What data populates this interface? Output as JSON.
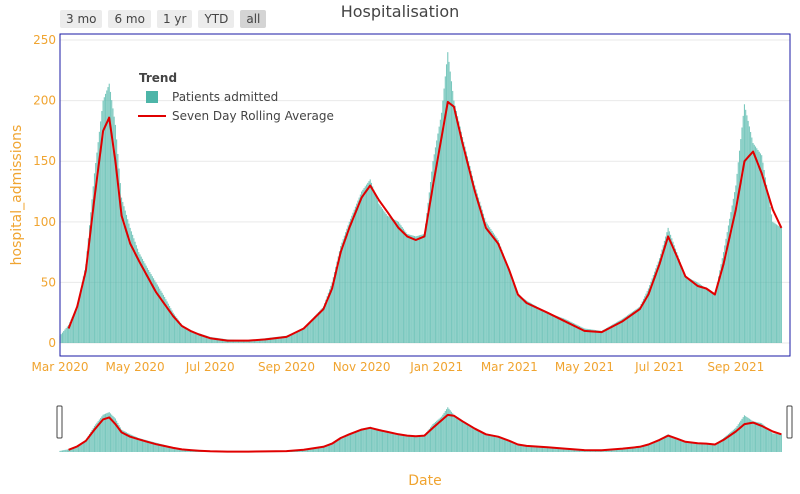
{
  "range_buttons": [
    "3 mo",
    "6 mo",
    "1 yr",
    "YTD",
    "all"
  ],
  "active_range": "all",
  "colors": {
    "bars": "#4db5a8",
    "line": "#e00000",
    "tick_text": "#f0a430",
    "plot_border": "#1a1aa6"
  },
  "chart_data": {
    "type": "bar",
    "title": "Hospitalisation",
    "xlabel": "Date",
    "ylabel": "hospital_admissions",
    "ylim": [
      0,
      255
    ],
    "xlim": [
      "2020-03-01",
      "2021-10-15"
    ],
    "x_ticks": [
      "Mar 2020",
      "May 2020",
      "Jul 2020",
      "Sep 2020",
      "Nov 2020",
      "Jan 2021",
      "Mar 2021",
      "May 2021",
      "Jul 2021",
      "Sep 2021"
    ],
    "x_tick_dates": [
      "2020-03-01",
      "2020-05-01",
      "2020-07-01",
      "2020-09-01",
      "2020-11-01",
      "2021-01-01",
      "2021-03-01",
      "2021-05-01",
      "2021-07-01",
      "2021-09-01"
    ],
    "y_ticks": [
      0,
      50,
      100,
      150,
      200,
      250
    ],
    "legend": {
      "title": "Trend",
      "position": "top-left",
      "entries": [
        "Patients admitted",
        "Seven Day Rolling Average"
      ]
    },
    "range_slider": true,
    "series": [
      {
        "name": "Patients admitted",
        "kind": "bar",
        "points": [
          [
            "2020-03-01",
            6
          ],
          [
            "2020-03-08",
            15
          ],
          [
            "2020-03-15",
            30
          ],
          [
            "2020-03-22",
            65
          ],
          [
            "2020-03-29",
            140
          ],
          [
            "2020-04-05",
            200
          ],
          [
            "2020-04-10",
            214
          ],
          [
            "2020-04-15",
            180
          ],
          [
            "2020-04-20",
            120
          ],
          [
            "2020-04-27",
            95
          ],
          [
            "2020-05-04",
            75
          ],
          [
            "2020-05-11",
            62
          ],
          [
            "2020-05-18",
            50
          ],
          [
            "2020-05-25",
            38
          ],
          [
            "2020-06-01",
            25
          ],
          [
            "2020-06-08",
            15
          ],
          [
            "2020-06-15",
            10
          ],
          [
            "2020-06-22",
            8
          ],
          [
            "2020-07-01",
            5
          ],
          [
            "2020-07-15",
            3
          ],
          [
            "2020-08-01",
            2
          ],
          [
            "2020-08-15",
            4
          ],
          [
            "2020-09-01",
            6
          ],
          [
            "2020-09-15",
            12
          ],
          [
            "2020-10-01",
            30
          ],
          [
            "2020-10-08",
            50
          ],
          [
            "2020-10-15",
            80
          ],
          [
            "2020-10-22",
            100
          ],
          [
            "2020-11-01",
            125
          ],
          [
            "2020-11-08",
            135
          ],
          [
            "2020-11-15",
            115
          ],
          [
            "2020-11-22",
            105
          ],
          [
            "2020-12-01",
            100
          ],
          [
            "2020-12-08",
            90
          ],
          [
            "2020-12-15",
            88
          ],
          [
            "2020-12-22",
            90
          ],
          [
            "2020-12-29",
            150
          ],
          [
            "2021-01-05",
            190
          ],
          [
            "2021-01-10",
            240
          ],
          [
            "2021-01-15",
            200
          ],
          [
            "2021-01-22",
            170
          ],
          [
            "2021-02-01",
            130
          ],
          [
            "2021-02-10",
            100
          ],
          [
            "2021-02-20",
            85
          ],
          [
            "2021-03-01",
            60
          ],
          [
            "2021-03-08",
            40
          ],
          [
            "2021-03-15",
            35
          ],
          [
            "2021-04-01",
            25
          ],
          [
            "2021-04-15",
            20
          ],
          [
            "2021-05-01",
            12
          ],
          [
            "2021-05-15",
            10
          ],
          [
            "2021-06-01",
            20
          ],
          [
            "2021-06-15",
            30
          ],
          [
            "2021-06-22",
            45
          ],
          [
            "2021-07-01",
            70
          ],
          [
            "2021-07-08",
            95
          ],
          [
            "2021-07-15",
            75
          ],
          [
            "2021-07-22",
            55
          ],
          [
            "2021-08-01",
            50
          ],
          [
            "2021-08-08",
            45
          ],
          [
            "2021-08-15",
            40
          ],
          [
            "2021-08-22",
            75
          ],
          [
            "2021-09-01",
            130
          ],
          [
            "2021-09-08",
            197
          ],
          [
            "2021-09-15",
            165
          ],
          [
            "2021-09-22",
            155
          ],
          [
            "2021-10-01",
            100
          ],
          [
            "2021-10-08",
            95
          ]
        ]
      },
      {
        "name": "Seven Day Rolling Average",
        "kind": "line",
        "points": [
          [
            "2020-03-08",
            12
          ],
          [
            "2020-03-15",
            30
          ],
          [
            "2020-03-22",
            60
          ],
          [
            "2020-03-29",
            120
          ],
          [
            "2020-04-05",
            175
          ],
          [
            "2020-04-10",
            186
          ],
          [
            "2020-04-15",
            150
          ],
          [
            "2020-04-20",
            105
          ],
          [
            "2020-04-27",
            82
          ],
          [
            "2020-05-04",
            68
          ],
          [
            "2020-05-11",
            55
          ],
          [
            "2020-05-18",
            42
          ],
          [
            "2020-05-25",
            32
          ],
          [
            "2020-06-01",
            22
          ],
          [
            "2020-06-08",
            14
          ],
          [
            "2020-06-15",
            10
          ],
          [
            "2020-06-22",
            7
          ],
          [
            "2020-07-01",
            4
          ],
          [
            "2020-07-15",
            2
          ],
          [
            "2020-08-01",
            2
          ],
          [
            "2020-08-15",
            3
          ],
          [
            "2020-09-01",
            5
          ],
          [
            "2020-09-15",
            12
          ],
          [
            "2020-10-01",
            28
          ],
          [
            "2020-10-08",
            45
          ],
          [
            "2020-10-15",
            75
          ],
          [
            "2020-10-22",
            95
          ],
          [
            "2020-11-01",
            120
          ],
          [
            "2020-11-08",
            130
          ],
          [
            "2020-11-15",
            118
          ],
          [
            "2020-11-22",
            108
          ],
          [
            "2020-12-01",
            95
          ],
          [
            "2020-12-08",
            88
          ],
          [
            "2020-12-15",
            85
          ],
          [
            "2020-12-22",
            88
          ],
          [
            "2020-12-29",
            130
          ],
          [
            "2021-01-05",
            170
          ],
          [
            "2021-01-10",
            199
          ],
          [
            "2021-01-15",
            195
          ],
          [
            "2021-01-22",
            165
          ],
          [
            "2021-02-01",
            125
          ],
          [
            "2021-02-10",
            95
          ],
          [
            "2021-02-20",
            82
          ],
          [
            "2021-03-01",
            60
          ],
          [
            "2021-03-08",
            40
          ],
          [
            "2021-03-15",
            33
          ],
          [
            "2021-04-01",
            25
          ],
          [
            "2021-04-15",
            18
          ],
          [
            "2021-05-01",
            10
          ],
          [
            "2021-05-15",
            9
          ],
          [
            "2021-06-01",
            18
          ],
          [
            "2021-06-15",
            28
          ],
          [
            "2021-06-22",
            40
          ],
          [
            "2021-07-01",
            65
          ],
          [
            "2021-07-08",
            88
          ],
          [
            "2021-07-15",
            72
          ],
          [
            "2021-07-22",
            55
          ],
          [
            "2021-08-01",
            47
          ],
          [
            "2021-08-08",
            45
          ],
          [
            "2021-08-15",
            40
          ],
          [
            "2021-08-22",
            65
          ],
          [
            "2021-09-01",
            110
          ],
          [
            "2021-09-08",
            150
          ],
          [
            "2021-09-15",
            158
          ],
          [
            "2021-09-22",
            140
          ],
          [
            "2021-10-01",
            110
          ],
          [
            "2021-10-08",
            95
          ]
        ]
      }
    ]
  }
}
